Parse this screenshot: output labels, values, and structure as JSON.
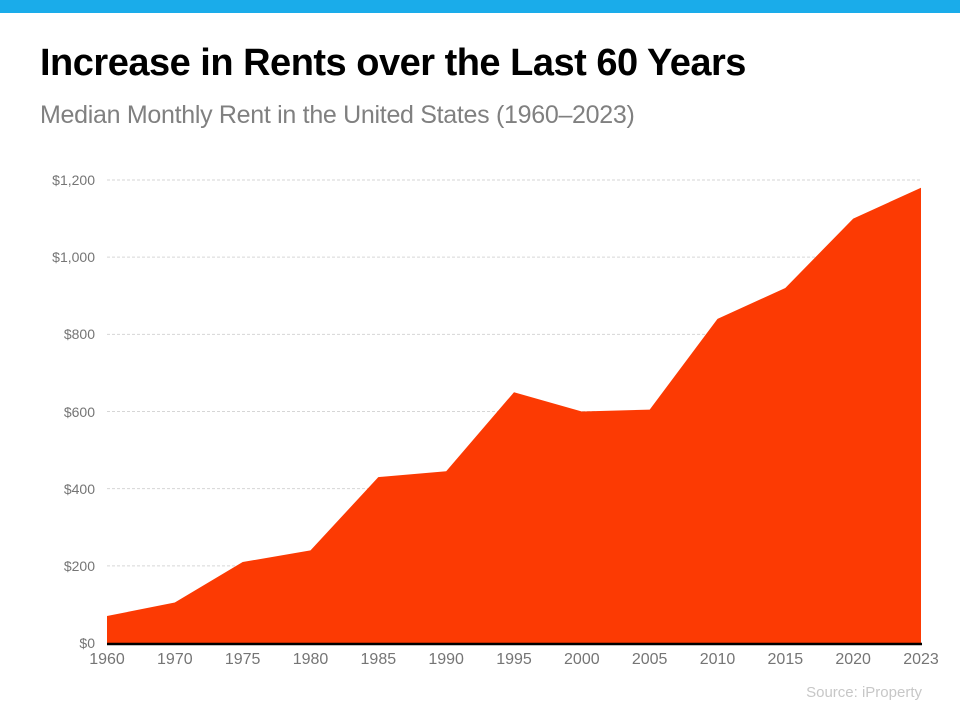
{
  "page": {
    "background_color": "#ffffff",
    "accent_bar_color": "#1AACEA"
  },
  "header": {
    "title": "Increase in Rents over the Last 60 Years",
    "subtitle": "Median Monthly Rent in the United States (1960–2023)"
  },
  "footer": {
    "source": "Source: iProperty"
  },
  "chart_data": {
    "type": "area",
    "title": "Increase in Rents over the Last 60 Years",
    "subtitle": "Median Monthly Rent in the United States (1960–2023)",
    "categories": [
      "1960",
      "1970",
      "1975",
      "1980",
      "1985",
      "1990",
      "1995",
      "2000",
      "2005",
      "2010",
      "2015",
      "2020",
      "2023"
    ],
    "series": [
      {
        "name": "Median Monthly Rent (USD)",
        "values": [
          70,
          105,
          210,
          240,
          430,
          445,
          650,
          600,
          605,
          840,
          920,
          1100,
          1180
        ]
      }
    ],
    "xlabel": "",
    "ylabel": "",
    "ylim": [
      0,
      1200
    ],
    "y_tick_step": 200,
    "y_tick_labels": [
      "$0",
      "$200",
      "$400",
      "$600",
      "$800",
      "$1,000",
      "$1,200"
    ],
    "grid": true,
    "legend": "none",
    "area_fill_color": "#FC3A03",
    "axis_line_color": "#000000",
    "gridline_color": "#d6d6d6",
    "tick_label_color": "#757575"
  }
}
